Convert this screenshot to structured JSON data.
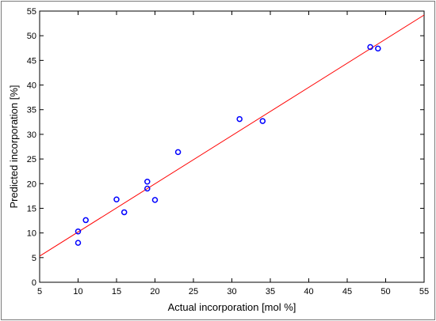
{
  "chart_data": {
    "type": "scatter",
    "title": "",
    "xlabel": "Actual incorporation [mol %]",
    "ylabel": "Predicted incorporation [%]",
    "xlim": [
      5,
      55
    ],
    "ylim": [
      0,
      55
    ],
    "xticks": [
      5,
      10,
      15,
      20,
      25,
      30,
      35,
      40,
      45,
      50,
      55
    ],
    "yticks": [
      0,
      5,
      10,
      15,
      20,
      25,
      30,
      35,
      40,
      45,
      50,
      55
    ],
    "grid": false,
    "legend": "none",
    "points": [
      {
        "x": 10,
        "y": 8.0
      },
      {
        "x": 10,
        "y": 10.3
      },
      {
        "x": 11,
        "y": 12.6
      },
      {
        "x": 15,
        "y": 16.8
      },
      {
        "x": 16,
        "y": 14.2
      },
      {
        "x": 19,
        "y": 19.0
      },
      {
        "x": 19,
        "y": 20.4
      },
      {
        "x": 20,
        "y": 16.7
      },
      {
        "x": 23,
        "y": 26.4
      },
      {
        "x": 31,
        "y": 33.1
      },
      {
        "x": 34,
        "y": 32.7
      },
      {
        "x": 48,
        "y": 47.7
      },
      {
        "x": 49,
        "y": 47.4
      }
    ],
    "fit_line": {
      "x": [
        5,
        55
      ],
      "y": [
        5.3,
        54.2
      ]
    },
    "colors": {
      "points": "#0000ff",
      "fit_line": "#ff0000",
      "axis": "#000000"
    }
  }
}
